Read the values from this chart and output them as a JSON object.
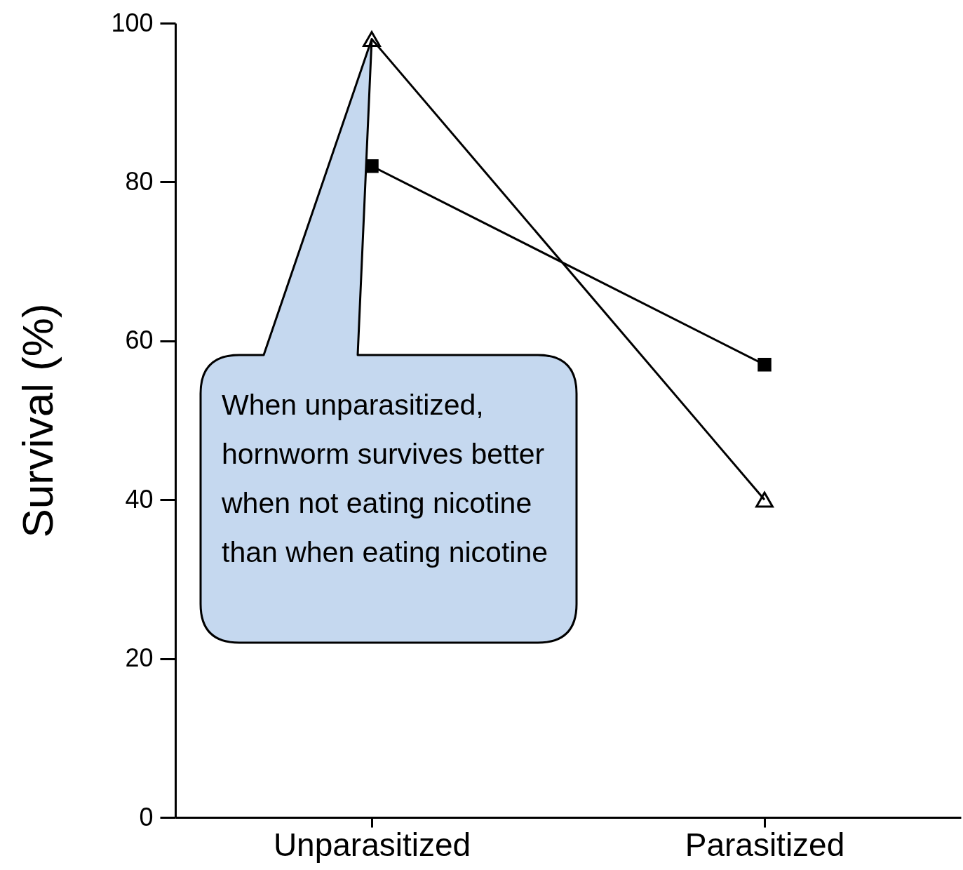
{
  "chart_data": {
    "type": "line",
    "ylabel": "Survival (%)",
    "categories": [
      "Unparasitized",
      "Parasitized"
    ],
    "series": [
      {
        "color": "#000000",
        "marker": "triangle",
        "values": [
          98,
          40
        ]
      },
      {
        "color": "#000000",
        "marker": "square",
        "values": [
          82,
          57
        ]
      }
    ],
    "ylim": [
      0,
      100
    ],
    "yticks": [
      0,
      20,
      40,
      60,
      80,
      100
    ],
    "grid": false,
    "annotations": [
      "When unparasitized, hornworm survives better when not eating nicotine than when eating nicotine"
    ]
  }
}
